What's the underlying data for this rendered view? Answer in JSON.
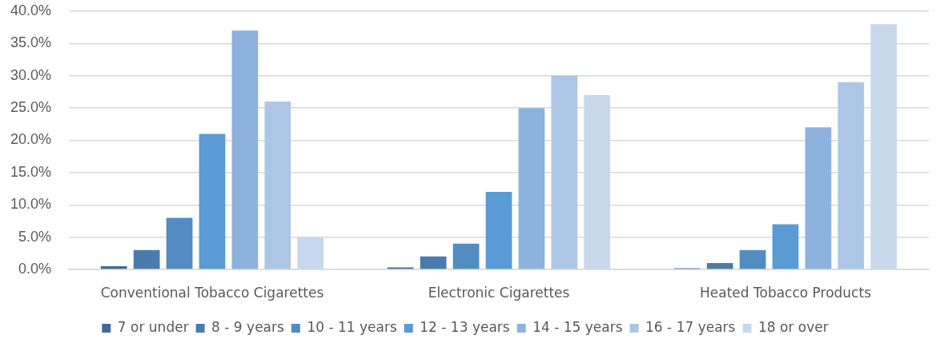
{
  "chart_data": {
    "type": "bar",
    "categories": [
      "Conventional Tobacco Cigarettes",
      "Electronic Cigarettes",
      "Heated Tobacco Products"
    ],
    "series": [
      {
        "name": "7 or under",
        "color": "#41699b",
        "values": [
          0.5,
          0.3,
          0.2
        ]
      },
      {
        "name": "8 - 9 years",
        "color": "#4a7bad",
        "values": [
          3,
          2,
          1
        ]
      },
      {
        "name": "10 - 11 years",
        "color": "#528cc2",
        "values": [
          8,
          4,
          3
        ]
      },
      {
        "name": "12 - 13 years",
        "color": "#5b9bd5",
        "values": [
          21,
          12,
          7
        ]
      },
      {
        "name": "14 - 15 years",
        "color": "#8db2dd",
        "values": [
          37,
          25,
          22
        ]
      },
      {
        "name": "16 - 17 years",
        "color": "#adc6e5",
        "values": [
          26,
          30,
          29
        ]
      },
      {
        "name": "18 or over",
        "color": "#c7d8ed",
        "values": [
          5,
          27,
          38
        ]
      }
    ],
    "ylim": [
      0,
      40
    ],
    "yticks": [
      {
        "value": 0,
        "label": "0.0%"
      },
      {
        "value": 5,
        "label": "5.0%"
      },
      {
        "value": 10,
        "label": "10.0%"
      },
      {
        "value": 15,
        "label": "15.0%"
      },
      {
        "value": 20,
        "label": "20.0%"
      },
      {
        "value": 25,
        "label": "25.0%"
      },
      {
        "value": 30,
        "label": "30.0%"
      },
      {
        "value": 35,
        "label": "35.0%"
      },
      {
        "value": 40,
        "label": "40.0%"
      }
    ],
    "grid": "y",
    "legend": "bottom"
  }
}
